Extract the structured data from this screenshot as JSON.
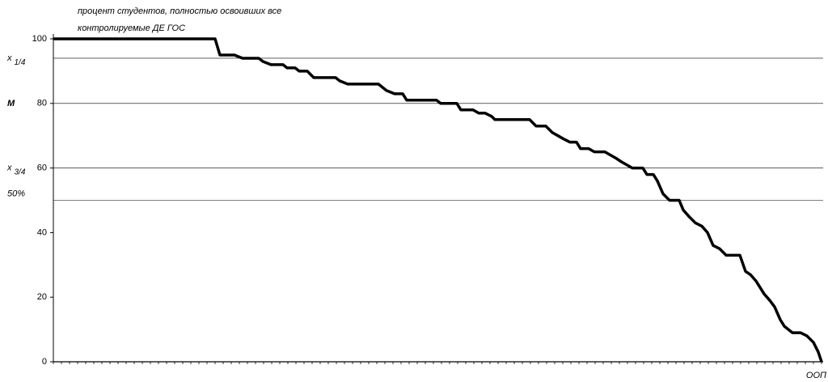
{
  "chart_data": {
    "type": "line",
    "title_lines": [
      "процент студентов, полностью освоивших все",
      "контролируемые ДЕ ГОС"
    ],
    "x_label": "ООП",
    "xlim": [
      0,
      190
    ],
    "xticks": [
      0,
      2,
      4,
      6,
      8,
      10,
      12,
      14,
      16,
      18,
      20,
      22,
      24,
      26,
      28,
      30,
      32,
      34,
      36,
      38,
      40,
      42,
      44,
      46,
      48,
      50,
      52,
      54,
      56,
      58,
      60,
      62,
      64,
      66,
      68,
      70,
      72,
      74,
      76,
      78,
      80,
      82,
      84,
      86,
      88,
      90,
      92,
      94,
      96,
      98,
      100,
      102,
      104,
      106,
      108,
      110,
      112,
      114,
      116,
      118,
      120,
      122,
      124,
      126,
      128,
      130,
      132,
      134,
      136,
      138,
      140,
      142,
      144,
      146,
      148,
      150,
      152,
      154,
      156,
      158,
      160,
      162,
      164,
      166,
      168,
      170,
      172,
      174,
      176,
      178,
      180,
      182,
      184,
      186,
      188,
      190
    ],
    "ylim": [
      0,
      100
    ],
    "yticks": [
      0,
      20,
      40,
      60,
      80,
      100
    ],
    "reference_lines": [
      {
        "value": 94,
        "symbol": "x",
        "sub": "1/4"
      },
      {
        "value": 80,
        "symbol": "M"
      },
      {
        "value": 60,
        "symbol": "x",
        "sub": "3/4"
      },
      {
        "value": 50,
        "symbol": "50%"
      }
    ],
    "series": [
      {
        "color": "#000000",
        "x": [
          0,
          40,
          41.2,
          44.8,
          46.8,
          50.8,
          51.8,
          53.8,
          56.8,
          57.8,
          59.8,
          60.8,
          62.8,
          64.4,
          69.8,
          70.8,
          72.8,
          80.4,
          82.4,
          84.4,
          86.4,
          87.4,
          94.8,
          95.8,
          99.8,
          100.8,
          103.8,
          105.2,
          106.8,
          108.4,
          109.2,
          117.8,
          119.4,
          121.8,
          123.4,
          124.8,
          126.2,
          127.8,
          129.4,
          130.4,
          132.4,
          133.8,
          136.4,
          137.8,
          139.2,
          140.4,
          141.8,
          143.2,
          145.8,
          146.8,
          148.4,
          149.4,
          150.8,
          152.4,
          154.8,
          155.8,
          157.2,
          158.8,
          160.4,
          161.8,
          163.2,
          164.8,
          166.4,
          169.8,
          171.2,
          172.4,
          173.8,
          174.8,
          175.8,
          177.2,
          178.4,
          179.8,
          180.8,
          181.8,
          182.8,
          184.8,
          186.4,
          188,
          189.2,
          190
        ],
        "values": [
          100,
          100,
          95,
          95,
          94,
          94,
          93,
          92,
          92,
          91,
          91,
          90,
          90,
          88,
          88,
          87,
          86,
          86,
          84,
          83,
          83,
          81,
          81,
          80,
          80,
          78,
          78,
          77,
          77,
          76,
          75,
          75,
          73,
          73,
          71,
          70,
          69,
          68,
          68,
          66,
          66,
          65,
          65,
          64,
          63,
          62,
          61,
          60,
          60,
          58,
          58,
          56,
          52,
          50,
          50,
          47,
          45,
          43,
          42,
          40,
          36,
          35,
          33,
          33,
          28,
          27,
          25,
          23,
          21,
          19,
          17,
          13,
          11,
          10,
          9,
          9,
          8,
          6,
          3,
          0
        ]
      }
    ]
  }
}
